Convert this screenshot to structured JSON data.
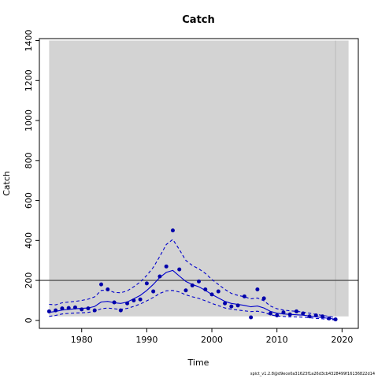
{
  "chart_data": {
    "type": "scatter",
    "title": "Catch",
    "xlabel": "Time",
    "ylabel": "Catch",
    "xlim": [
      1973.5,
      2022.5
    ],
    "ylim": [
      -40,
      1410
    ],
    "x_ticks": [
      1980,
      1990,
      2000,
      2010,
      2020
    ],
    "y_ticks": [
      0,
      200,
      400,
      600,
      800,
      1000,
      1200,
      1400
    ],
    "shaded_region": {
      "x": [
        1975,
        2021
      ],
      "y": [
        20,
        1400
      ],
      "color": "#d3d3d3"
    },
    "reference_line": {
      "y": 200,
      "color": "#555555"
    },
    "vertical_line": {
      "x": 2019,
      "color": "#bbbbbb"
    },
    "observed": {
      "x": [
        1975,
        1976,
        1977,
        1978,
        1979,
        1980,
        1981,
        1982,
        1983,
        1984,
        1985,
        1986,
        1987,
        1988,
        1989,
        1990,
        1991,
        1992,
        1993,
        1994,
        1995,
        1996,
        1997,
        1998,
        1999,
        2000,
        2001,
        2002,
        2003,
        2004,
        2005,
        2006,
        2007,
        2008,
        2009,
        2010,
        2011,
        2012,
        2013,
        2014,
        2015,
        2016,
        2017,
        2018,
        2019
      ],
      "y": [
        45,
        50,
        60,
        62,
        65,
        55,
        60,
        50,
        180,
        155,
        90,
        50,
        85,
        100,
        105,
        185,
        145,
        220,
        270,
        450,
        255,
        150,
        175,
        195,
        155,
        130,
        145,
        85,
        70,
        75,
        120,
        15,
        155,
        110,
        35,
        25,
        40,
        30,
        45,
        35,
        20,
        25,
        20,
        10,
        5
      ],
      "color": "#0000aa"
    },
    "fitted": {
      "x": [
        1975,
        1976,
        1977,
        1978,
        1979,
        1980,
        1981,
        1982,
        1983,
        1984,
        1985,
        1986,
        1987,
        1988,
        1989,
        1990,
        1991,
        1992,
        1993,
        1994,
        1995,
        1996,
        1997,
        1998,
        1999,
        2000,
        2001,
        2002,
        2003,
        2004,
        2005,
        2006,
        2007,
        2008,
        2009,
        2010,
        2011,
        2012,
        2013,
        2014,
        2015,
        2016,
        2017,
        2018,
        2019
      ],
      "y": [
        40,
        45,
        52,
        55,
        58,
        60,
        62,
        70,
        92,
        95,
        88,
        85,
        92,
        108,
        125,
        150,
        180,
        215,
        240,
        250,
        222,
        195,
        180,
        168,
        150,
        130,
        112,
        95,
        85,
        80,
        75,
        68,
        72,
        62,
        45,
        36,
        32,
        30,
        28,
        26,
        22,
        18,
        14,
        10,
        6
      ],
      "color": "#0000cc"
    },
    "upper_ci": {
      "x": [
        1975,
        1976,
        1977,
        1978,
        1979,
        1980,
        1981,
        1982,
        1983,
        1984,
        1985,
        1986,
        1987,
        1988,
        1989,
        1990,
        1991,
        1992,
        1993,
        1994,
        1995,
        1996,
        1997,
        1998,
        1999,
        2000,
        2001,
        2002,
        2003,
        2004,
        2005,
        2006,
        2007,
        2008,
        2009,
        2010,
        2011,
        2012,
        2013,
        2014,
        2015,
        2016,
        2017,
        2018,
        2019
      ],
      "y": [
        80,
        78,
        88,
        92,
        95,
        100,
        106,
        118,
        150,
        152,
        140,
        138,
        148,
        168,
        192,
        225,
        265,
        320,
        380,
        405,
        355,
        300,
        275,
        258,
        235,
        205,
        180,
        155,
        135,
        125,
        118,
        108,
        112,
        98,
        72,
        58,
        52,
        48,
        45,
        42,
        36,
        30,
        25,
        20,
        14
      ],
      "color": "#0000cc"
    },
    "lower_ci": {
      "x": [
        1975,
        1976,
        1977,
        1978,
        1979,
        1980,
        1981,
        1982,
        1983,
        1984,
        1985,
        1986,
        1987,
        1988,
        1989,
        1990,
        1991,
        1992,
        1993,
        1994,
        1995,
        1996,
        1997,
        1998,
        1999,
        2000,
        2001,
        2002,
        2003,
        2004,
        2005,
        2006,
        2007,
        2008,
        2009,
        2010,
        2011,
        2012,
        2013,
        2014,
        2015,
        2016,
        2017,
        2018,
        2019
      ],
      "y": [
        20,
        25,
        32,
        35,
        37,
        38,
        40,
        45,
        58,
        62,
        58,
        55,
        60,
        70,
        82,
        98,
        115,
        135,
        148,
        150,
        142,
        128,
        118,
        110,
        98,
        85,
        74,
        62,
        56,
        52,
        48,
        44,
        46,
        40,
        28,
        22,
        20,
        18,
        17,
        16,
        13,
        10,
        8,
        5,
        2
      ],
      "color": "#0000cc"
    },
    "grid": false,
    "legend": "none"
  },
  "footnote": "spict_v1.2.8@d9ece0a31623f1a26d3cb4328499f16136822d14"
}
